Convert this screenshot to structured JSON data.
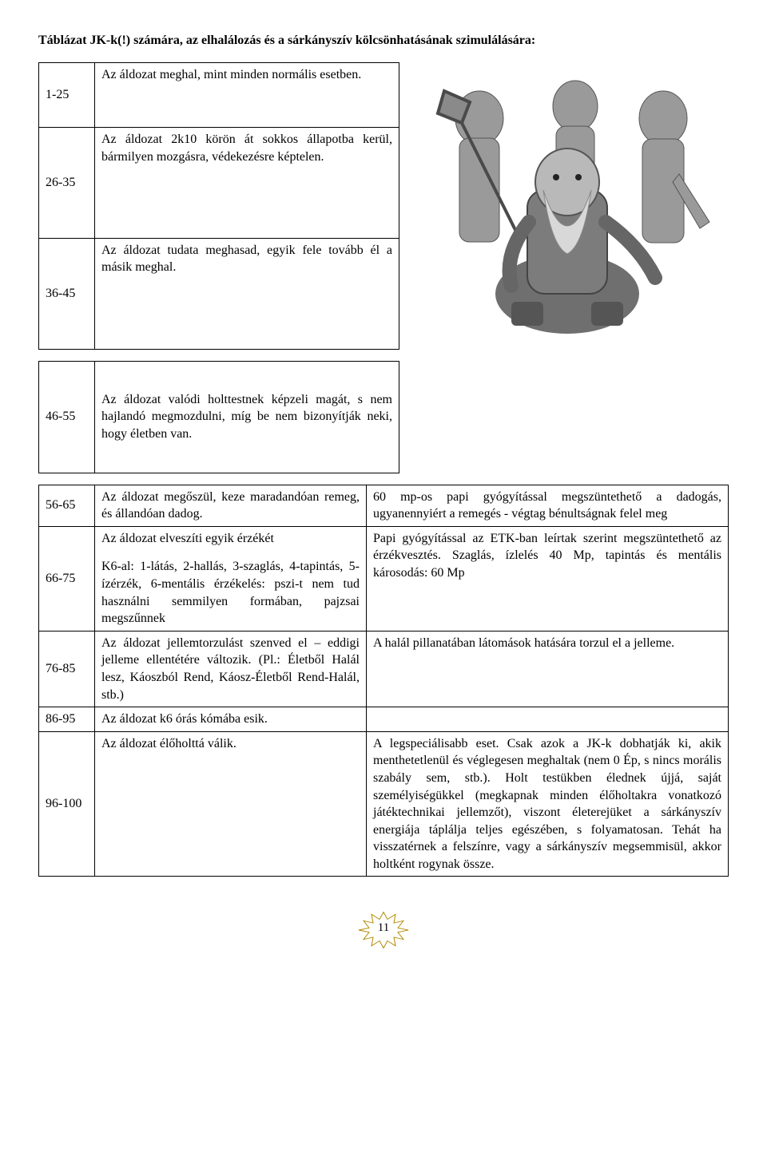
{
  "header": "Táblázat JK-k(!) számára, az elhalálozás és a sárkányszív kölcsönhatásának szimulálására:",
  "topRows": [
    {
      "range": "1-25",
      "desc": "Az áldozat meghal, mint minden normális esetben."
    },
    {
      "range": "26-35",
      "desc": "Az áldozat 2k10 körön át sokkos állapotba kerül, bármilyen mozgásra, védekezésre képtelen."
    },
    {
      "range": "36-45",
      "desc": "Az áldozat tudata meghasad, egyik fele tovább él a másik meghal."
    }
  ],
  "midRow": {
    "range": "46-55",
    "desc": "Az áldozat valódi holttestnek képzeli magát, s nem hajlandó megmozdulni, míg be nem bizonyítják neki, hogy életben van."
  },
  "bottomRows": [
    {
      "range": "56-65",
      "desc": "Az áldozat megőszül, keze maradandóan remeg, és állandóan dadog.",
      "effect": "60 mp-os papi gyógyítással megszüntethető a dadogás, ugyanennyiért a remegés - végtag bénultságnak felel meg"
    },
    {
      "range": "66-75",
      "descLine1": "Az áldozat elveszíti egyik érzékét",
      "descLine2": "K6-al: 1-látás, 2-hallás, 3-szaglás, 4-tapintás, 5-ízérzék, 6-mentális érzékelés: pszi-t nem tud használni semmilyen formában, pajzsai megszűnnek",
      "effect": "Papi gyógyítással az ETK-ban leírtak szerint megszüntethető az érzékvesztés. Szaglás, ízlelés 40 Mp, tapintás és mentális károsodás: 60 Mp"
    },
    {
      "range": "76-85",
      "desc": "Az áldozat jellemtorzulást szenved el – eddigi jelleme ellentétére változik. (Pl.: Életből Halál lesz, Káoszból Rend, Káosz-Életből Rend-Halál, stb.)",
      "effect": "A halál pillanatában látomások hatására torzul el a jelleme."
    },
    {
      "range": "86-95",
      "desc": "Az áldozat k6 órás kómába esik.",
      "effect": ""
    },
    {
      "range": "96-100",
      "desc": "Az áldozat élőholttá válik.",
      "effect": "A legspeciálisabb eset. Csak azok a JK-k dobhatják ki, akik menthetetlenül és véglegesen meghaltak (nem 0 Ép, s nincs morális szabály sem, stb.). Holt testükben élednek újjá, saját személyiségükkel (megkapnak minden élőholtakra vonatkozó játéktechnikai jellemzőt), viszont életerejüket a sárkányszív energiája táplálja teljes egészében, s folyamatosan. Tehát ha visszatérnek a felszínre, vagy a sárkányszív megsemmisül, akkor holtként rogynak össze."
    }
  ],
  "pageNumber": "11"
}
